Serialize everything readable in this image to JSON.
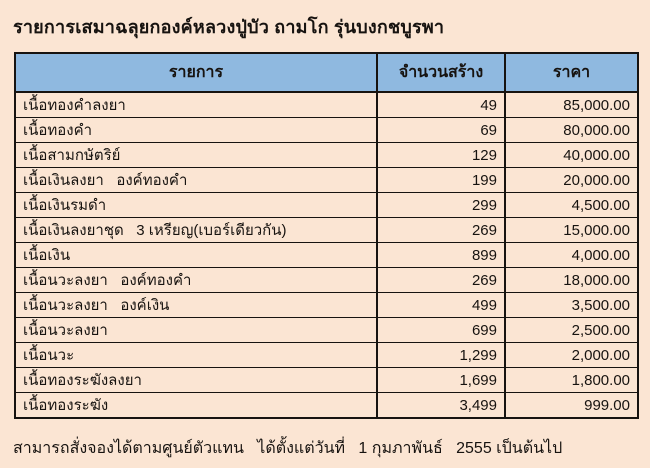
{
  "page": {
    "title": "รายการเสมาฉลุยกองค์หลวงปู่บัว ถามโก รุ่นบงกชบูรพา",
    "footer": "สามารถสั่งจองได้ตามศูนย์ตัวแทน   ได้ตั้งแต่วันที่   1 กุมภาพันธ์   2555 เป็นต้นไป",
    "colors": {
      "background": "#FBE5D3",
      "header_background": "#8FB9E0",
      "border": "#171310",
      "text": "#171310"
    }
  },
  "table": {
    "columns": [
      "รายการ",
      "จำนวนสร้าง",
      "ราคา"
    ],
    "rows": [
      {
        "item": "เนื้อทองคำลงยา",
        "quantity": "49",
        "price": "85,000.00"
      },
      {
        "item": "เนื้อทองคำ",
        "quantity": "69",
        "price": "80,000.00"
      },
      {
        "item": "เนื้อสามกษัตริย์",
        "quantity": "129",
        "price": "40,000.00"
      },
      {
        "item": "เนื้อเงินลงยา   องค์ทองคำ",
        "quantity": "199",
        "price": "20,000.00"
      },
      {
        "item": "เนื้อเงินรมดำ",
        "quantity": "299",
        "price": "4,500.00"
      },
      {
        "item": "เนื้อเงินลงยาชุด   3 เหรียญ(เบอร์เดียวกัน)",
        "quantity": "269",
        "price": "15,000.00"
      },
      {
        "item": "เนื้อเงิน",
        "quantity": "899",
        "price": "4,000.00"
      },
      {
        "item": "เนื้อนวะลงยา   องค์ทองคำ",
        "quantity": "269",
        "price": "18,000.00"
      },
      {
        "item": "เนื้อนวะลงยา   องค์เงิน",
        "quantity": "499",
        "price": "3,500.00"
      },
      {
        "item": "เนื้อนวะลงยา",
        "quantity": "699",
        "price": "2,500.00"
      },
      {
        "item": "เนื้อนวะ",
        "quantity": "1,299",
        "price": "2,000.00"
      },
      {
        "item": "เนื้อทองระฆังลงยา",
        "quantity": "1,699",
        "price": "1,800.00"
      },
      {
        "item": "เนื้อทองระฆัง",
        "quantity": "3,499",
        "price": "999.00"
      }
    ]
  }
}
